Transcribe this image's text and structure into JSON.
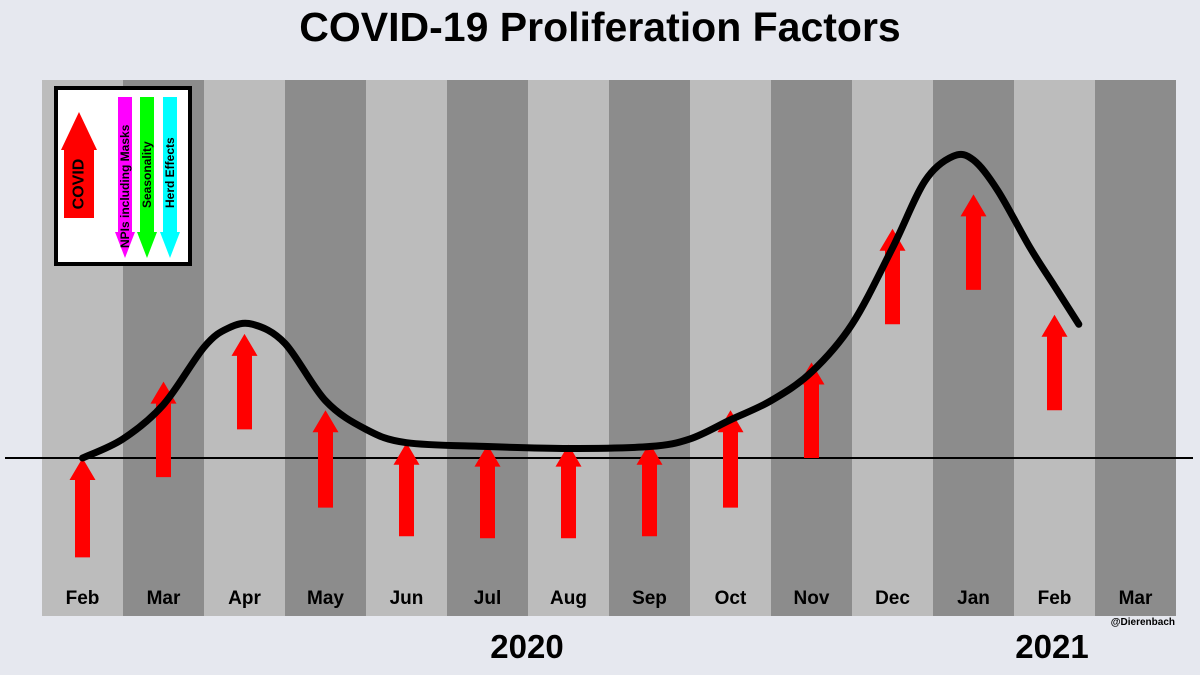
{
  "chart_data": {
    "type": "line",
    "title": "COVID-19 Proliferation Factors",
    "categories": [
      "Feb",
      "Mar",
      "Apr",
      "May",
      "Jun",
      "Jul",
      "Aug",
      "Sep",
      "Oct",
      "Nov",
      "Dec",
      "Jan",
      "Feb",
      "Mar"
    ],
    "years": [
      "2020",
      "2021"
    ],
    "credit": "@Dierenbach",
    "series": [
      {
        "name": "COVID",
        "x": [
          0.0,
          0.5,
          1.0,
          1.5,
          1.8,
          2.1,
          2.5,
          3.0,
          3.5,
          4.0,
          5.0,
          6.0,
          7.0,
          7.5,
          8.0,
          8.5,
          9.0,
          9.5,
          10.0,
          10.4,
          10.75,
          11.0,
          11.3,
          11.7,
          12.0,
          12.3
        ],
        "values": [
          0,
          0.1,
          0.28,
          0.58,
          0.68,
          0.7,
          0.6,
          0.3,
          0.15,
          0.08,
          0.06,
          0.05,
          0.06,
          0.1,
          0.2,
          0.3,
          0.45,
          0.7,
          1.1,
          1.45,
          1.58,
          1.56,
          1.4,
          1.1,
          0.9,
          0.7
        ]
      }
    ],
    "monthly_change": [
      {
        "month": "Feb",
        "from": -0.52,
        "to": 0.0
      },
      {
        "month": "Mar",
        "from": -0.1,
        "to": 0.4
      },
      {
        "month": "Apr",
        "from": 0.15,
        "to": 0.65
      },
      {
        "month": "May",
        "from": -0.26,
        "to": 0.25
      },
      {
        "month": "Jun",
        "from": -0.41,
        "to": 0.08
      },
      {
        "month": "Jul",
        "from": -0.42,
        "to": 0.07
      },
      {
        "month": "Aug",
        "from": -0.42,
        "to": 0.07
      },
      {
        "month": "Sep",
        "from": -0.41,
        "to": 0.08
      },
      {
        "month": "Oct",
        "from": -0.26,
        "to": 0.25
      },
      {
        "month": "Nov",
        "from": 0.0,
        "to": 0.5
      },
      {
        "month": "Dec",
        "from": 0.7,
        "to": 1.2
      },
      {
        "month": "Jan",
        "from": 0.88,
        "to": 1.38
      },
      {
        "month": "Feb",
        "from": 0.25,
        "to": 0.75
      }
    ],
    "legend": {
      "position": "top-left",
      "items": [
        {
          "label": "COVID",
          "direction": "up",
          "color": "#ff0000"
        },
        {
          "label": "NPIs including Masks",
          "direction": "down",
          "color": "#ff00ff"
        },
        {
          "label": "Seasonality",
          "direction": "down",
          "color": "#00ff00"
        },
        {
          "label": "Herd Effects",
          "direction": "down",
          "color": "#00ffff"
        }
      ]
    },
    "colors": {
      "band_light": "#bcbcbc",
      "band_dark": "#8c8c8c",
      "arrow": "#ff0000",
      "curve": "#000000"
    }
  }
}
